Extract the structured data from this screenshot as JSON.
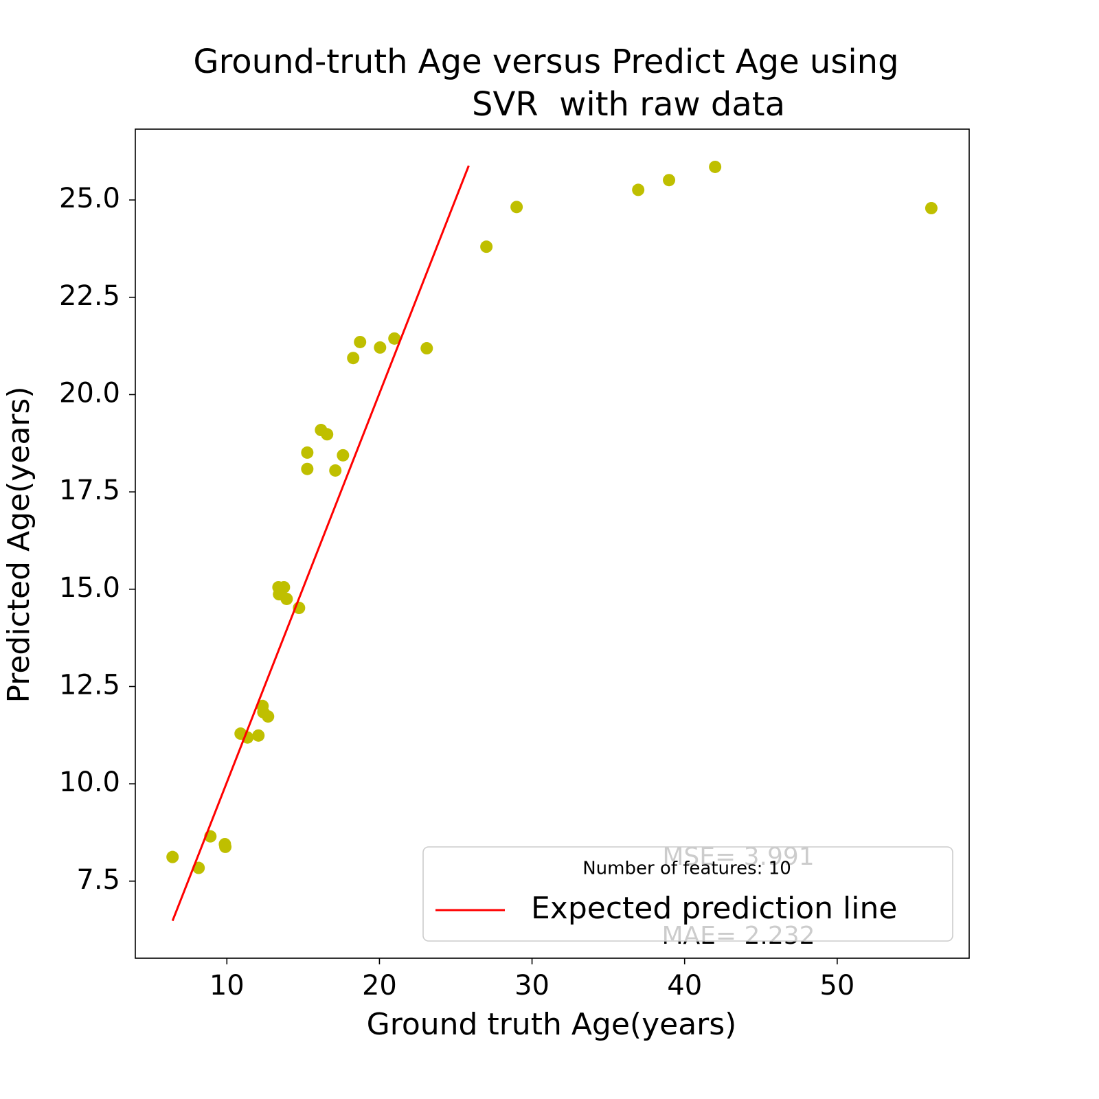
{
  "chart_data": {
    "type": "scatter",
    "title_lines": [
      "Ground-truth Age versus Predict Age using",
      "SVR  with raw data"
    ],
    "x_label": "Ground truth Age(years)",
    "y_label": "Predicted Age(years)",
    "xlim": [
      4.0,
      58.65
    ],
    "ylim": [
      5.52,
      26.82
    ],
    "xticks": [
      10,
      20,
      30,
      40,
      50
    ],
    "yticks": [
      7.5,
      {
        "value": 10,
        "label": "10.0"
      },
      12.5,
      {
        "value": 15,
        "label": "15.0"
      },
      17.5,
      {
        "value": 20,
        "label": "20.0"
      },
      22.5,
      {
        "value": 25,
        "label": "25.0"
      }
    ],
    "legend_title": "Number of features: 10",
    "legend_position": "lower right",
    "annotations": [
      "MSE= 3.991",
      "MAE= 2.232"
    ],
    "series": [
      {
        "name": "Expected prediction line",
        "type": "line",
        "color": "#ff0000",
        "x": [
          6.44,
          25.85
        ],
        "values": [
          6.48,
          25.88
        ]
      },
      {
        "type": "scatter",
        "color": "#bfbf00",
        "x": [
          6.44,
          8.15,
          8.92,
          9.87,
          9.9,
          10.9,
          11.35,
          12.07,
          12.34,
          12.39,
          12.7,
          13.38,
          13.74,
          13.42,
          13.92,
          14.73,
          15.27,
          15.27,
          16.17,
          16.57,
          17.11,
          17.61,
          18.28,
          18.73,
          20.04,
          20.98,
          23.1,
          27.01,
          28.99,
          36.96,
          38.98,
          42.0,
          56.17
        ],
        "values": [
          8.12,
          7.84,
          8.65,
          8.45,
          8.38,
          11.29,
          11.19,
          11.24,
          12.0,
          11.84,
          11.73,
          15.05,
          15.05,
          14.87,
          14.75,
          14.52,
          18.51,
          18.09,
          19.09,
          18.98,
          18.05,
          18.44,
          20.94,
          21.35,
          21.21,
          21.44,
          21.19,
          23.8,
          24.82,
          25.26,
          25.51,
          25.85,
          24.79
        ]
      }
    ]
  }
}
